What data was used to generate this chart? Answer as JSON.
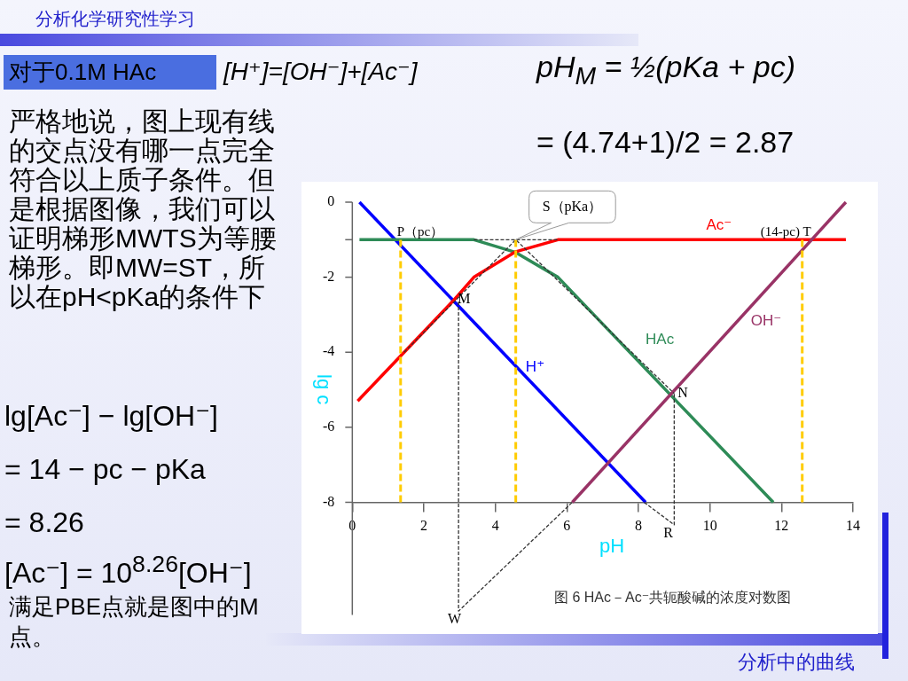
{
  "chart_data": {
    "type": "line",
    "title": "分析化学研究性学习",
    "xlabel": "pH",
    "ylabel": "lg c",
    "xlim": [
      0,
      14
    ],
    "xticks": [
      0,
      2,
      4,
      6,
      8,
      10,
      12,
      14
    ],
    "ylim": [
      -11,
      0
    ],
    "yticks": [
      0,
      {
        "value": -1,
        "label": null
      },
      -2,
      -4,
      -6,
      -8
    ],
    "grid": false,
    "legend": false,
    "marker": "none",
    "series": [
      {
        "name": "H⁺",
        "color": "#0000ff",
        "x": [
          0.2,
          8.2
        ],
        "values": [
          0,
          -8
        ]
      },
      {
        "name": "HAc",
        "color": "#2e8b57",
        "x": [
          0.2,
          3.4,
          4.57,
          5.75,
          11.77
        ],
        "values": [
          -1,
          -1,
          -1.34,
          -2,
          -8
        ]
      },
      {
        "name": "Ac⁻",
        "color": "#ff0000",
        "x": [
          0.15,
          2.85,
          3.4,
          4.57,
          5.75,
          13.8
        ],
        "values": [
          -5.3,
          -2.6,
          -2,
          -1.32,
          -1,
          -1
        ]
      },
      {
        "name": "OH⁻",
        "color": "#993366",
        "x": [
          6.15,
          13.8
        ],
        "values": [
          -8,
          0
        ]
      },
      {
        "color": "#333333",
        "line_style": "dashed",
        "x": [
          1.45,
          4.57,
          9.0
        ],
        "values": [
          -4,
          -1,
          -5.1
        ]
      },
      {
        "color": "#333333",
        "line_style": "dashed",
        "x": [
          3.4,
          5.75
        ],
        "values": [
          -1,
          -1
        ]
      },
      {
        "color": "#333333",
        "line_style": "dashed",
        "x": [
          2.97,
          2.97,
          6.15
        ],
        "values": [
          -2.65,
          -10.9,
          -8
        ]
      },
      {
        "color": "#333333",
        "line_style": "dashed",
        "x": [
          8.16,
          9.0,
          9.0
        ],
        "values": [
          -8,
          -8.6,
          -5.1
        ]
      }
    ],
    "ref_lines": [
      {
        "axis": "x",
        "value": 1.35,
        "label": "P（pc）",
        "color": "#ffcc00",
        "line_style": "dashed"
      },
      {
        "axis": "x",
        "value": 4.57,
        "label": null,
        "color": "#ffcc00",
        "line_style": "dashed"
      },
      {
        "axis": "x",
        "value": 12.58,
        "label": "(14-pc) T",
        "color": "#ffcc00",
        "line_style": "dashed"
      }
    ],
    "annotations": [
      "对于0.1M HAc",
      "[H⁺]=[OH⁻]+[Ac⁻]",
      "pH$_{M}$ = ½(pKa + pc)",
      "= (4.74+1)/2 = 2.87",
      "严格地说，图上现有线的交点没有哪一点完全符合以上质子条件。但是根据图像，我们可以证明梯形MWTS为等腰梯形。即MW=ST，所以在pH<pKa的条件下",
      "lg[Ac⁻] − lg[OH⁻]",
      "= 14 − pc − pKa",
      "= 8.26",
      "[Ac⁻] = 10$^{8.26}$[OH⁻]",
      "满足PBE点就是图中的M点。",
      "分析中的曲线",
      "图 6  HAc－Ac⁻共轭酸碱的浓度对数图",
      {
        "text": "S（pKa）",
        "x": 4.57,
        "y": -1
      },
      {
        "text": "M",
        "x": 2.85,
        "y": -2.6
      },
      {
        "text": "N",
        "x": 9.0,
        "y": -5.1
      },
      {
        "text": "R",
        "x": 9.0,
        "y": -8.6
      },
      {
        "text": "W",
        "x": 2.97,
        "y": -10.9
      }
    ]
  }
}
